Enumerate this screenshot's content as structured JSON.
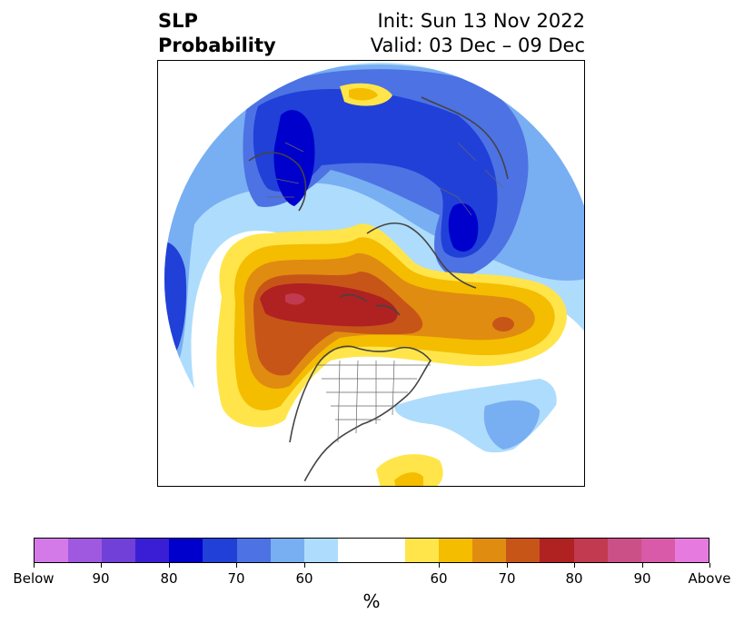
{
  "title": {
    "variable": "SLP",
    "type": "Probability",
    "init": "Init: Sun 13 Nov 2022",
    "valid": "Valid: 03 Dec – 09 Dec"
  },
  "colorbar": {
    "unit": "%",
    "colors": [
      "#d47ae8",
      "#9f58e0",
      "#7040d8",
      "#3a1ed6",
      "#0000cc",
      "#2040d8",
      "#4d72e4",
      "#78aef2",
      "#aedcfc",
      "#ffffff",
      "#ffffff",
      "#ffe54a",
      "#f4bd00",
      "#e08c10",
      "#c85518",
      "#b02121",
      "#c23a50",
      "#cc5088",
      "#d85aa8",
      "#e77ade"
    ],
    "ticks": [
      {
        "label": "Below",
        "index": 0
      },
      {
        "label": "90",
        "index": 2
      },
      {
        "label": "80",
        "index": 4
      },
      {
        "label": "70",
        "index": 6
      },
      {
        "label": "60",
        "index": 8
      },
      {
        "label": "60",
        "index": 12
      },
      {
        "label": "70",
        "index": 14
      },
      {
        "label": "80",
        "index": 16
      },
      {
        "label": "90",
        "index": 18
      },
      {
        "label": "Above",
        "index": 20
      }
    ]
  },
  "map": {
    "projection": "north-polar-stereographic",
    "legend_palette": {
      "below_60": "#aedcfc",
      "below_70": "#78aef2",
      "below_80": "#4d72e4",
      "below_90": "#2040d8",
      "below_max": "#0000cc",
      "above_50": "#ffe54a",
      "above_60": "#f4bd00",
      "above_70": "#e08c10",
      "above_80": "#c85518",
      "above_90": "#b02121",
      "above_max": "#c23a50"
    }
  }
}
